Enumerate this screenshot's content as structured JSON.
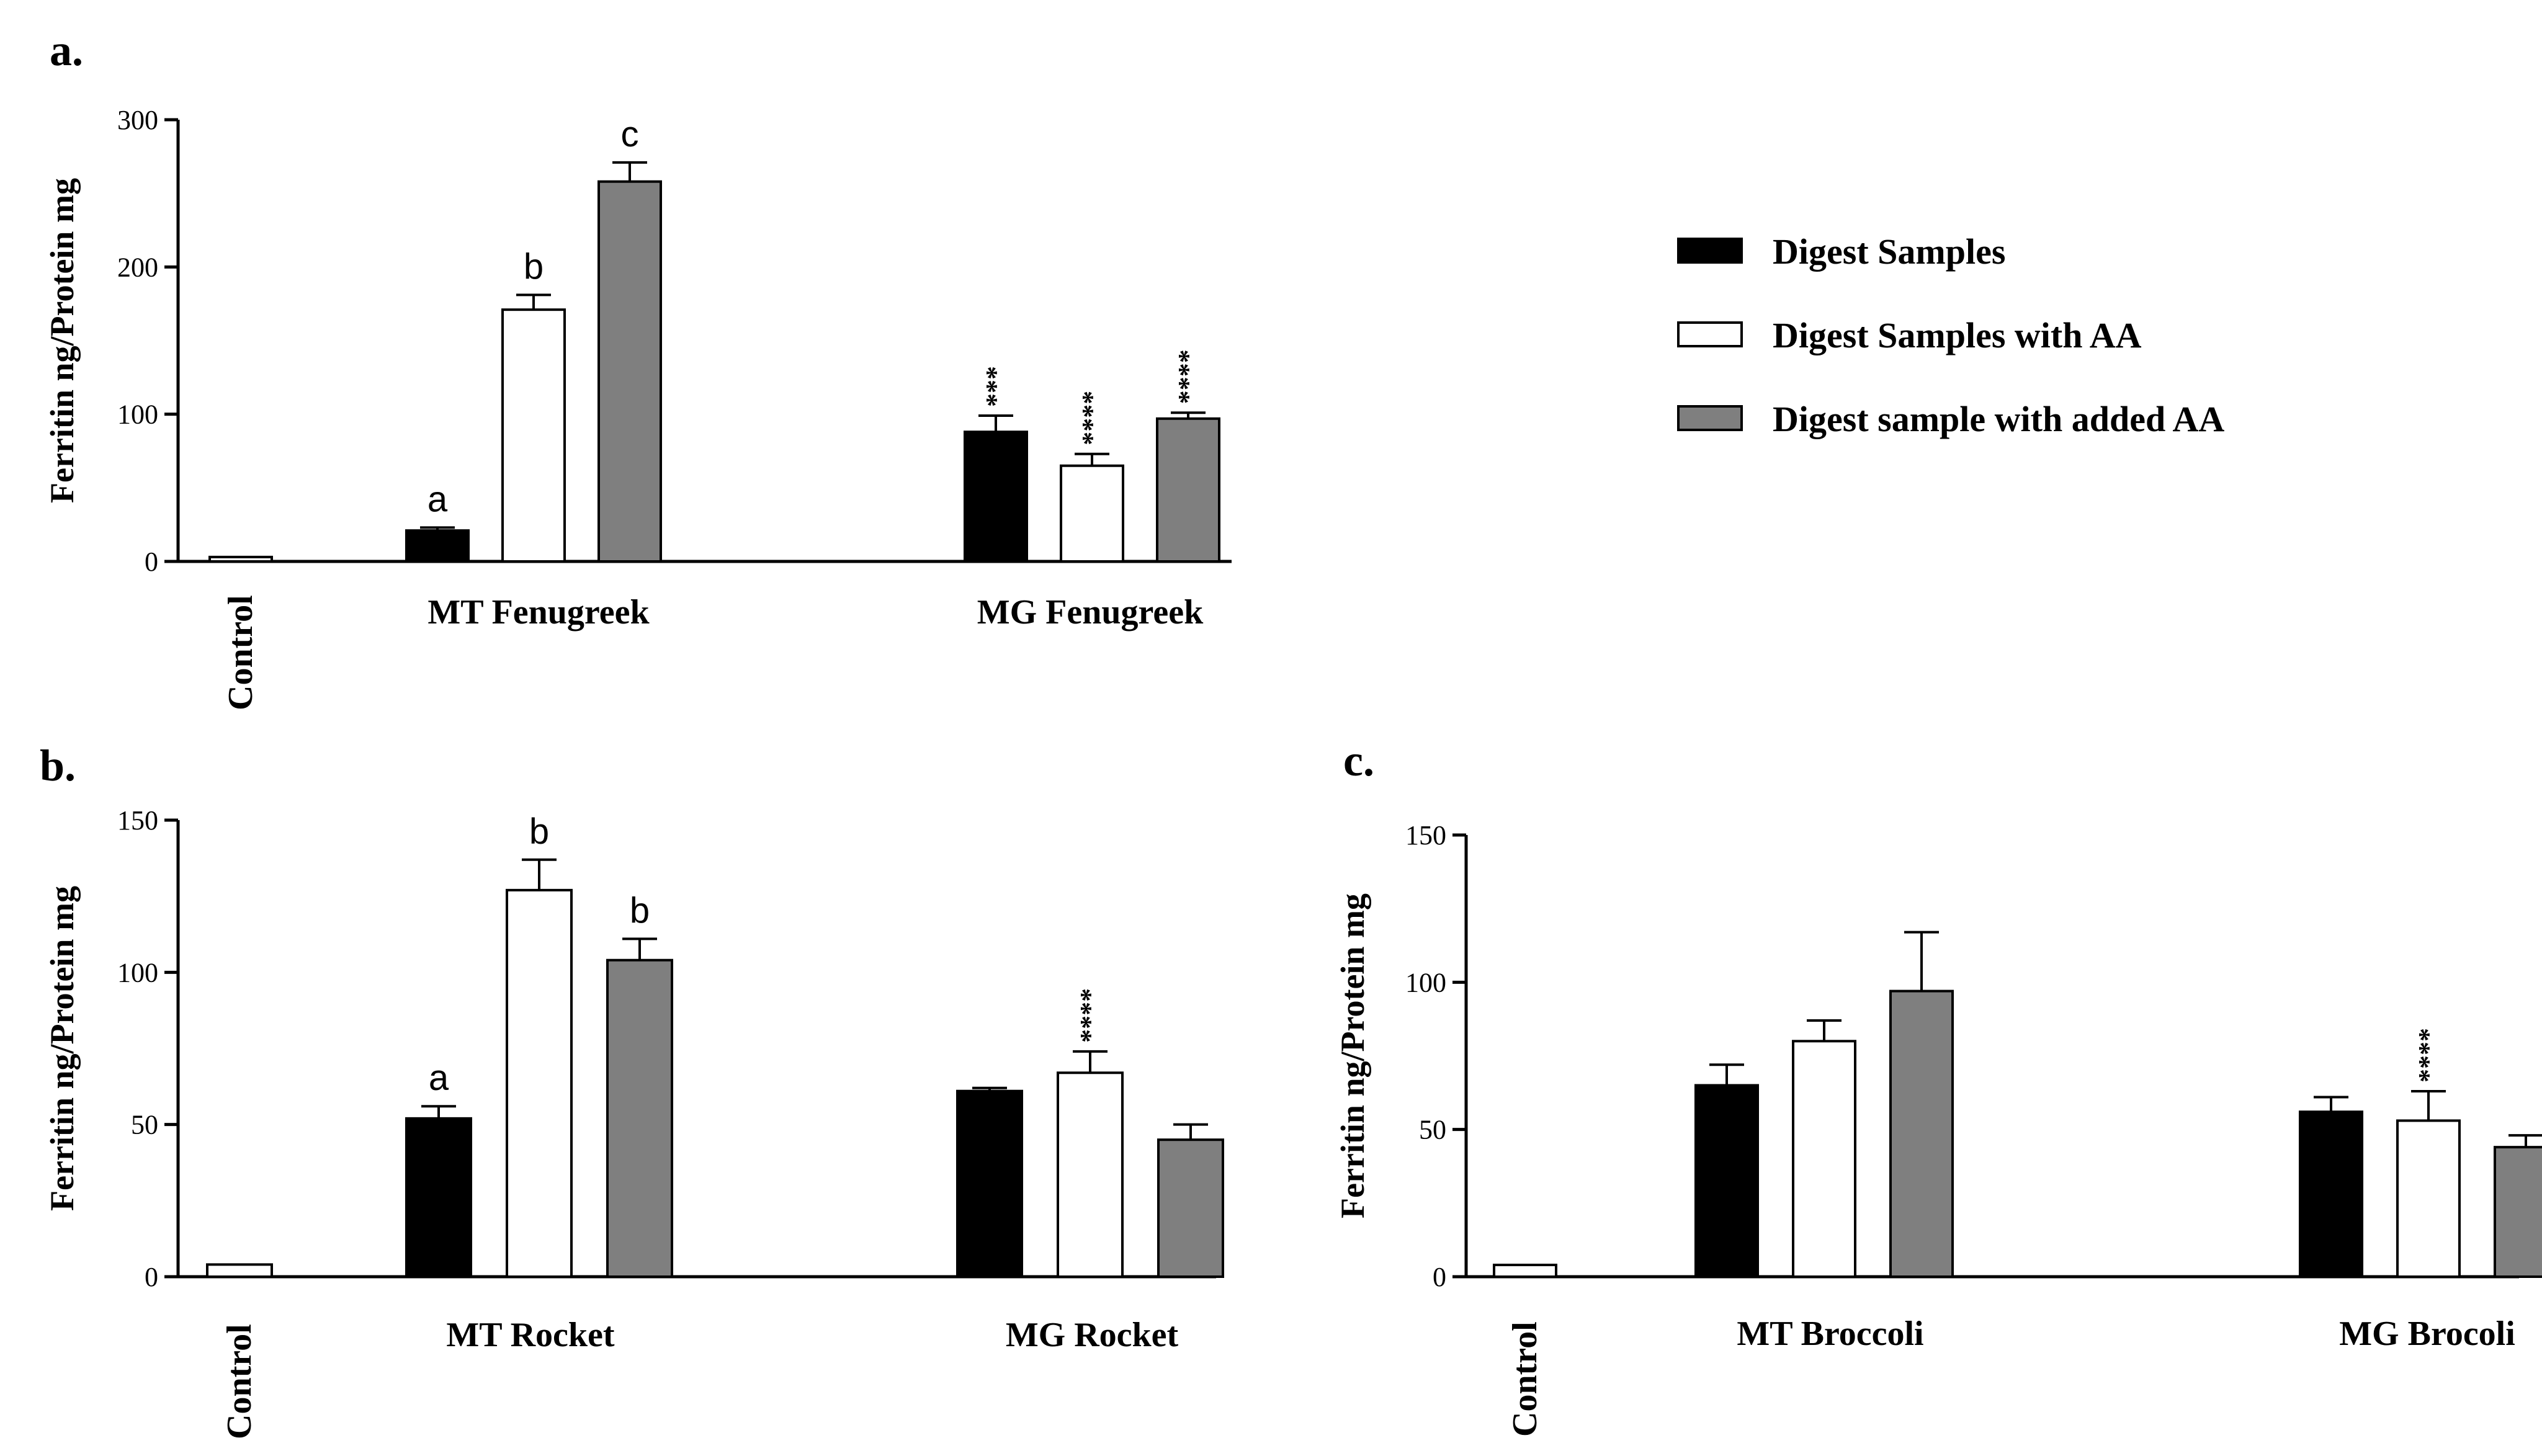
{
  "legend": [
    {
      "label": "Digest Samples",
      "color": "#000000"
    },
    {
      "label": "Digest Samples with AA",
      "color": "#ffffff"
    },
    {
      "label": "Digest sample with added AA",
      "color": "#7f7f7f"
    }
  ],
  "chart_data": [
    {
      "type": "bar",
      "panel": "a.",
      "ylabel": "Ferritin ng/Protein mg",
      "ylim": [
        0,
        300
      ],
      "yticks": [
        0,
        100,
        200,
        300
      ],
      "categories": [
        "Control",
        "MT Fenugreek",
        "MG Fenugreek"
      ],
      "control": {
        "value": 3,
        "error": 1
      },
      "series": [
        {
          "name": "Digest Samples",
          "values": [
            null,
            21,
            88
          ],
          "errors": [
            null,
            2,
            11
          ],
          "annotations": [
            null,
            "a",
            "***"
          ]
        },
        {
          "name": "Digest Samples with AA",
          "values": [
            null,
            171,
            65
          ],
          "errors": [
            null,
            10,
            8
          ],
          "annotations": [
            null,
            "b",
            "****"
          ]
        },
        {
          "name": "Digest sample with added AA",
          "values": [
            null,
            258,
            97
          ],
          "errors": [
            null,
            13,
            4
          ],
          "annotations": [
            null,
            "c",
            "****"
          ]
        }
      ]
    },
    {
      "type": "bar",
      "panel": "b.",
      "ylabel": "Ferritin ng/Protein mg",
      "ylim": [
        0,
        150
      ],
      "yticks": [
        0,
        50,
        100,
        150
      ],
      "categories": [
        "Control",
        "MT Rocket",
        "MG Rocket"
      ],
      "control": {
        "value": 4,
        "error": 0.5
      },
      "series": [
        {
          "name": "Digest Samples",
          "values": [
            null,
            52,
            61
          ],
          "errors": [
            null,
            4,
            1
          ],
          "annotations": [
            null,
            "a",
            null
          ]
        },
        {
          "name": "Digest Samples with AA",
          "values": [
            null,
            127,
            67
          ],
          "errors": [
            null,
            10,
            7
          ],
          "annotations": [
            null,
            "b",
            "****"
          ]
        },
        {
          "name": "Digest sample with added AA",
          "values": [
            null,
            104,
            45
          ],
          "errors": [
            null,
            7,
            5
          ],
          "annotations": [
            null,
            "b",
            null
          ]
        }
      ]
    },
    {
      "type": "bar",
      "panel": "c.",
      "ylabel": "Ferritin ng/Protein mg",
      "ylim": [
        0,
        150
      ],
      "yticks": [
        0,
        50,
        100,
        150
      ],
      "categories": [
        "Control",
        "MT Broccoli",
        "MG Brocoli"
      ],
      "control": {
        "value": 4,
        "error": 0.5
      },
      "series": [
        {
          "name": "Digest Samples",
          "values": [
            null,
            65,
            56
          ],
          "errors": [
            null,
            7,
            5
          ],
          "annotations": [
            null,
            null,
            null
          ]
        },
        {
          "name": "Digest Samples with AA",
          "values": [
            null,
            80,
            53
          ],
          "errors": [
            null,
            7,
            10
          ],
          "annotations": [
            null,
            null,
            "****"
          ]
        },
        {
          "name": "Digest sample with added AA",
          "values": [
            null,
            97,
            44
          ],
          "errors": [
            null,
            20,
            4
          ],
          "annotations": [
            null,
            null,
            null
          ]
        }
      ]
    }
  ]
}
